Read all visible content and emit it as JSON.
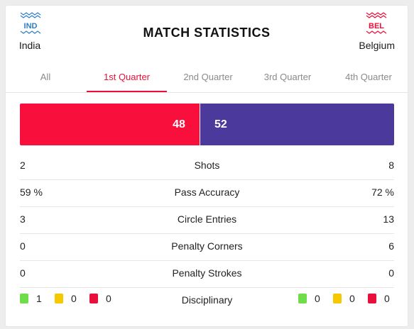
{
  "header": {
    "title": "MATCH STATISTICS"
  },
  "home": {
    "name": "India",
    "code": "IND",
    "color": "#2f7fc6"
  },
  "away": {
    "name": "Belgium",
    "code": "BEL",
    "color": "#e8103a"
  },
  "tabs": [
    {
      "label": "All",
      "active": false
    },
    {
      "label": "1st Quarter",
      "active": true
    },
    {
      "label": "2nd Quarter",
      "active": false
    },
    {
      "label": "3rd Quarter",
      "active": false
    },
    {
      "label": "4th Quarter",
      "active": false
    }
  ],
  "possession": {
    "home": "48",
    "away": "52",
    "home_color": "#f90f3b",
    "away_color": "#4b3a9c"
  },
  "stats": [
    {
      "label": "Shots",
      "home": "2",
      "away": "8"
    },
    {
      "label": "Pass Accuracy",
      "home": "59 %",
      "away": "72 %"
    },
    {
      "label": "Circle Entries",
      "home": "3",
      "away": "13"
    },
    {
      "label": "Penalty Corners",
      "home": "0",
      "away": "6"
    },
    {
      "label": "Penalty Strokes",
      "home": "0",
      "away": "0"
    }
  ],
  "disciplinary": {
    "label": "Disciplinary",
    "home": {
      "green": "1",
      "yellow": "0",
      "red": "0"
    },
    "away": {
      "green": "0",
      "yellow": "0",
      "red": "0"
    },
    "colors": {
      "green": "#6fdc4a",
      "yellow": "#f5c800",
      "red": "#e8103a"
    }
  }
}
